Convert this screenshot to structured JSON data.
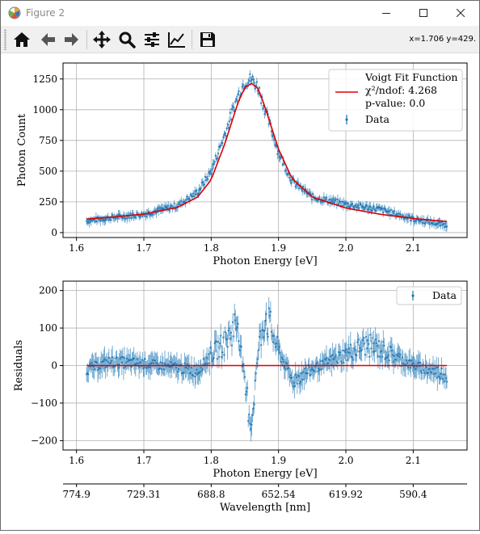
{
  "window": {
    "title": "Figure 2"
  },
  "toolbar": {
    "buttons": [
      {
        "name": "home-button",
        "icon": "home-icon"
      },
      {
        "name": "back-button",
        "icon": "back-arrow-icon"
      },
      {
        "name": "forward-button",
        "icon": "forward-arrow-icon"
      },
      {
        "name": "pan-button",
        "icon": "move-icon"
      },
      {
        "name": "zoom-button",
        "icon": "magnifier-icon"
      },
      {
        "name": "subplots-button",
        "icon": "sliders-icon"
      },
      {
        "name": "edit-axes-button",
        "icon": "line-chart-icon"
      },
      {
        "name": "save-button",
        "icon": "floppy-disk-icon"
      }
    ],
    "coords": "x=1.706 y=429."
  },
  "colors": {
    "data": "#1f77b4",
    "fit": "#dd0000",
    "grid": "#b0b0b0"
  },
  "chart_data": [
    {
      "type": "scatter",
      "title": "",
      "xlabel": "Photon Energy [eV]",
      "ylabel": "Photon Count",
      "xlim": [
        1.58,
        2.18
      ],
      "ylim": [
        -40,
        1380
      ],
      "xticks": [
        "1.6",
        "1.7",
        "1.8",
        "1.9",
        "2.0",
        "2.1"
      ],
      "xtick_values": [
        1.6,
        1.7,
        1.8,
        1.9,
        2.0,
        2.1
      ],
      "yticks": [
        "0",
        "250",
        "500",
        "750",
        "1000",
        "1250"
      ],
      "ytick_values": [
        0,
        250,
        500,
        750,
        1000,
        1250
      ],
      "grid": true,
      "legend": {
        "placement": "top-right",
        "fit_label_line1": "Voigt Fit Function",
        "fit_label_line2": "χ²/ndof: 4.268",
        "fit_label_line3": "p-value: 0.0",
        "data_label": "Data"
      },
      "series": [
        {
          "name": "Data",
          "kind": "errorbar",
          "x": [
            1.615,
            1.65,
            1.7,
            1.75,
            1.78,
            1.8,
            1.82,
            1.84,
            1.85,
            1.86,
            1.87,
            1.88,
            1.9,
            1.92,
            1.95,
            2.0,
            2.05,
            2.1,
            2.15
          ],
          "y": [
            95,
            120,
            150,
            220,
            330,
            500,
            800,
            1120,
            1230,
            1250,
            1180,
            1000,
            650,
            420,
            290,
            230,
            190,
            110,
            60
          ],
          "yerr": 30
        },
        {
          "name": "Voigt Fit Function",
          "kind": "line",
          "x": [
            1.615,
            1.65,
            1.7,
            1.75,
            1.78,
            1.8,
            1.82,
            1.84,
            1.85,
            1.86,
            1.87,
            1.88,
            1.9,
            1.92,
            1.95,
            2.0,
            2.05,
            2.1,
            2.15
          ],
          "y": [
            110,
            125,
            150,
            205,
            290,
            430,
            720,
            1060,
            1180,
            1215,
            1170,
            1020,
            680,
            440,
            290,
            200,
            150,
            115,
            90
          ]
        }
      ]
    },
    {
      "type": "scatter",
      "title": "",
      "xlabel": "Photon Energy [eV]",
      "ylabel": "Residuals",
      "xlim": [
        1.58,
        2.18
      ],
      "ylim": [
        -225,
        225
      ],
      "xticks": [
        "1.6",
        "1.7",
        "1.8",
        "1.9",
        "2.0",
        "2.1"
      ],
      "xtick_values": [
        1.6,
        1.7,
        1.8,
        1.9,
        2.0,
        2.1
      ],
      "yticks": [
        "−200",
        "−100",
        "0",
        "100",
        "200"
      ],
      "ytick_values": [
        -200,
        -100,
        0,
        100,
        200
      ],
      "grid": true,
      "legend": {
        "placement": "top-right",
        "data_label": "Data"
      },
      "series": [
        {
          "name": "Data",
          "kind": "errorbar",
          "x": [
            1.615,
            1.65,
            1.7,
            1.75,
            1.78,
            1.8,
            1.82,
            1.84,
            1.85,
            1.86,
            1.87,
            1.88,
            1.9,
            1.92,
            1.95,
            2.0,
            2.03,
            2.05,
            2.1,
            2.15
          ],
          "y": [
            -10,
            10,
            5,
            -5,
            -15,
            30,
            60,
            120,
            -60,
            -150,
            40,
            140,
            40,
            -40,
            -10,
            30,
            55,
            45,
            0,
            -25
          ],
          "yerr": 25
        },
        {
          "name": "zero",
          "kind": "line",
          "x": [
            1.615,
            2.15
          ],
          "y": [
            0,
            0
          ]
        }
      ],
      "secondary_xaxis": {
        "xlabel": "Wavelength [nm]",
        "ticks": [
          "774.9",
          "729.31",
          "688.8",
          "652.54",
          "619.92",
          "590.4"
        ],
        "tick_positions": [
          1.6,
          1.7,
          1.8,
          1.9,
          2.0,
          2.1
        ]
      }
    }
  ]
}
